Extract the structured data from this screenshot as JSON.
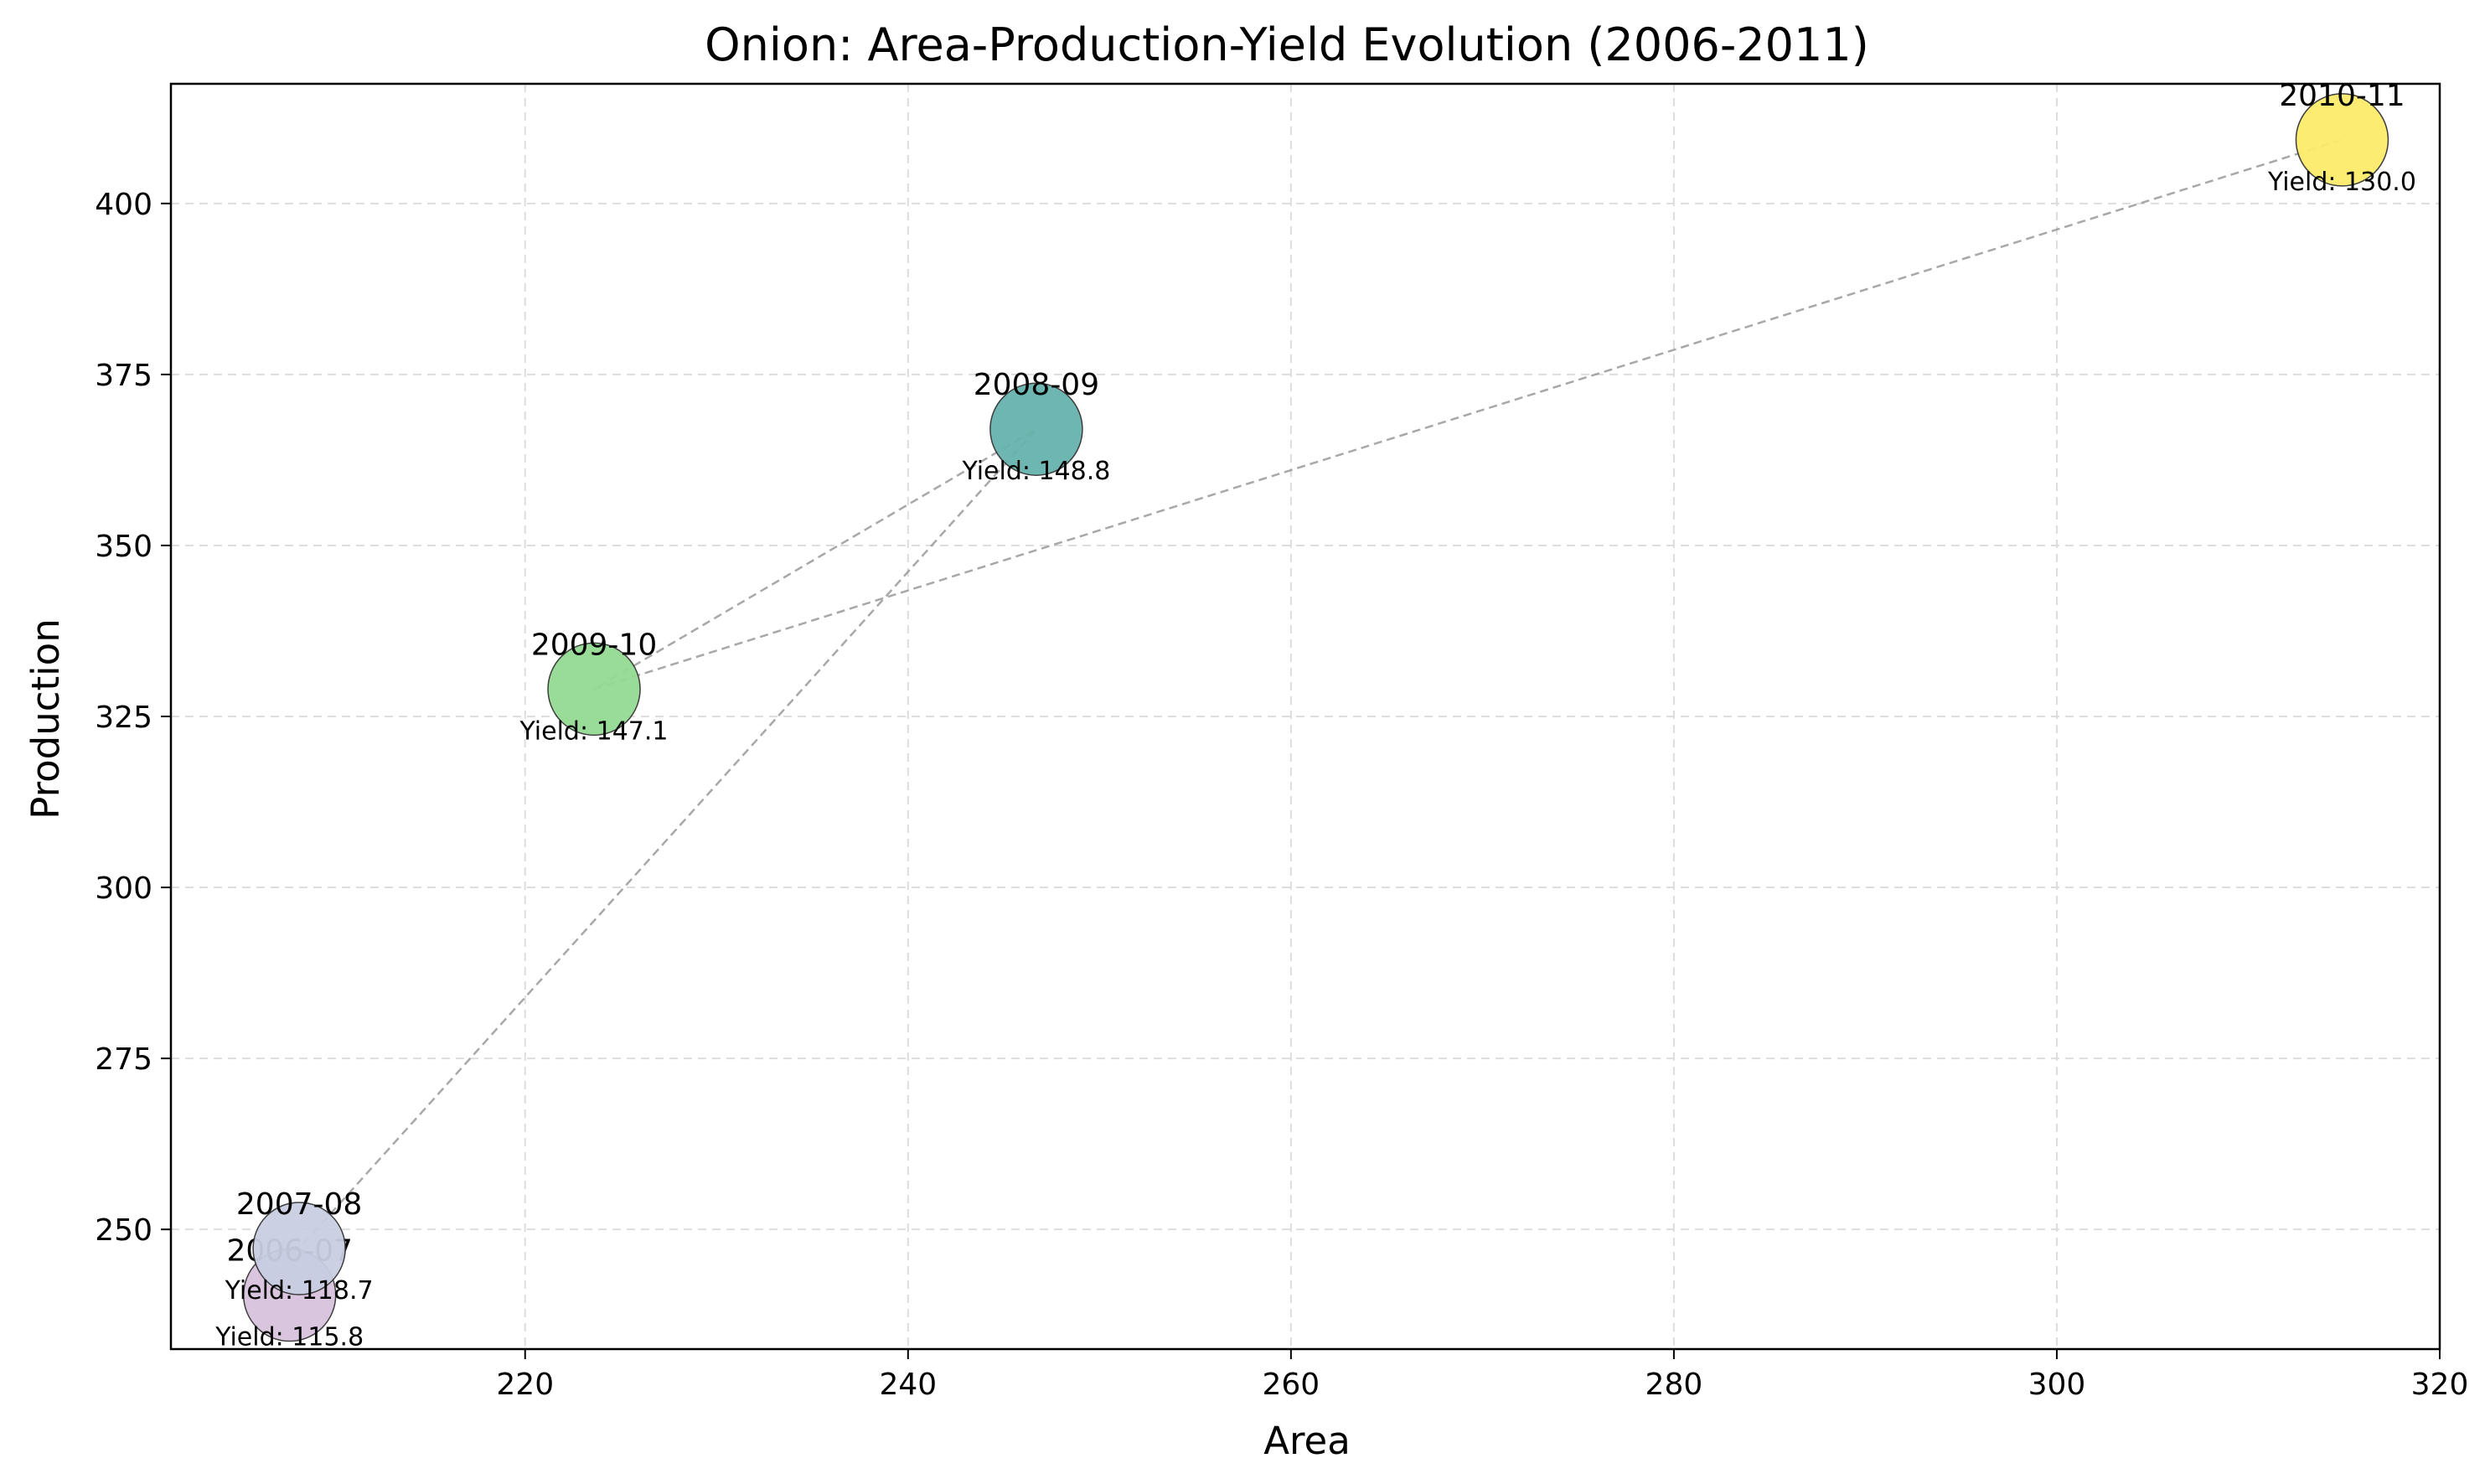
{
  "chart_data": {
    "type": "scatter",
    "title": "Onion: Area-Production-Yield Evolution (2006-2011)",
    "xlabel": "Area",
    "ylabel": "Production",
    "xlim": [
      201.5,
      320
    ],
    "ylim": [
      232.5,
      417.5
    ],
    "xticks": [
      220,
      240,
      260,
      280,
      300,
      320
    ],
    "yticks": [
      250,
      275,
      300,
      325,
      350,
      375,
      400
    ],
    "grid": true,
    "connect_order": [
      "2006-07",
      "2007-08",
      "2008-09",
      "2009-10",
      "2010-11"
    ],
    "points": [
      {
        "label": "2006-07",
        "area": 207.7,
        "production": 240.4,
        "yield": 115.8,
        "yield_label": "Yield: 115.8",
        "color": "#D9C2DE"
      },
      {
        "label": "2007-08",
        "area": 208.2,
        "production": 247.2,
        "yield": 118.7,
        "yield_label": "Yield: 118.7",
        "color": "#C9CEE2"
      },
      {
        "label": "2008-09",
        "area": 246.7,
        "production": 367.0,
        "yield": 148.8,
        "yield_label": "Yield: 148.8",
        "color": "#66B3AD"
      },
      {
        "label": "2009-10",
        "area": 223.6,
        "production": 329.0,
        "yield": 147.1,
        "yield_label": "Yield: 147.1",
        "color": "#93DB93"
      },
      {
        "label": "2010-11",
        "area": 314.9,
        "production": 409.3,
        "yield": 130.0,
        "yield_label": "Yield: 130.0",
        "color": "#FDEB6B"
      }
    ]
  }
}
